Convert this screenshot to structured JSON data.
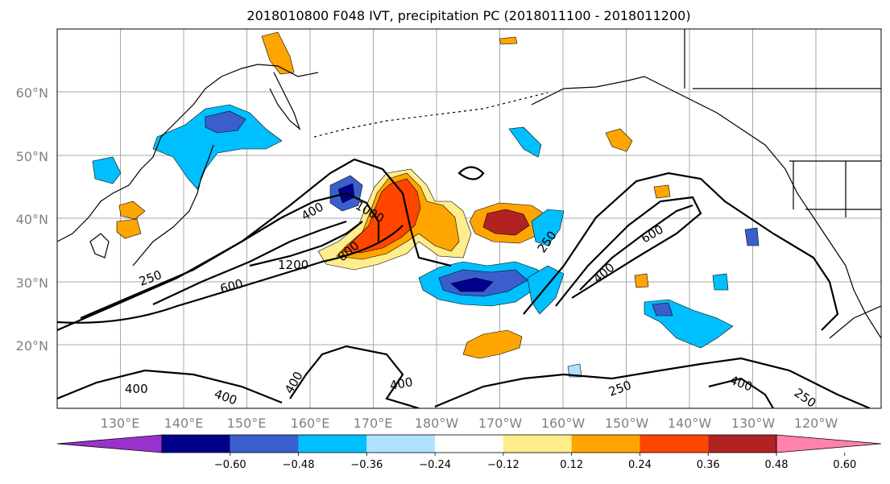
{
  "title": "2018010800 F048 IVT, precipitation PC (2018011100 - 2018011200)",
  "colors": {
    "grid": "#a8a8a8",
    "coast": "#000000",
    "contour": "#000000"
  },
  "lat_labels": [
    "20°N",
    "30°N",
    "40°N",
    "50°N",
    "60°N"
  ],
  "lon_labels": [
    "130°E",
    "140°E",
    "150°E",
    "160°E",
    "170°E",
    "180°W",
    "170°W",
    "160°W",
    "150°W",
    "140°W",
    "130°W",
    "120°W"
  ],
  "colorbar": {
    "colors": [
      "#9932cc",
      "#00008b",
      "#3a5fcd",
      "#00bfff",
      "#b0e2ff",
      "#ffffff",
      "#ffec8b",
      "#ffa500",
      "#ff4500",
      "#b22222",
      "#ff82ab"
    ],
    "ticks": [
      "−0.60",
      "−0.48",
      "−0.36",
      "−0.24",
      "−0.12",
      "0.12",
      "0.24",
      "0.36",
      "0.48",
      "0.60"
    ]
  },
  "contour_labels": [
    "400",
    "1000",
    "250",
    "1200",
    "800",
    "600",
    "250",
    "600",
    "400",
    "400",
    "400",
    "400",
    "400",
    "250",
    "400",
    "250"
  ]
}
